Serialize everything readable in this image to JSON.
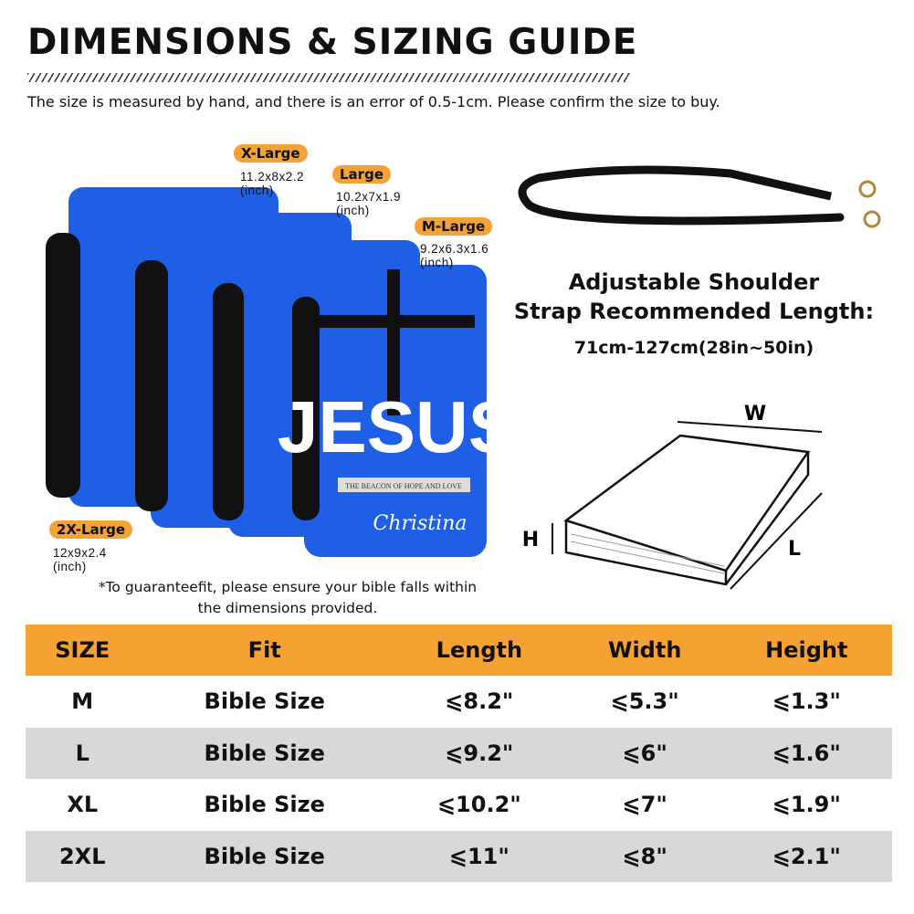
{
  "header": {
    "title": "DIMENSIONS & SIZING GUIDE",
    "subtitle": "The size is measured by hand, and there is an error of 0.5-1cm. Please confirm the size to buy."
  },
  "sizes": [
    {
      "label": "X-Large",
      "dims": "11.2x8x2.2",
      "unit": "(inch)"
    },
    {
      "label": "Large",
      "dims": "10.2x7x1.9",
      "unit": "(inch)"
    },
    {
      "label": "M-Large",
      "dims": "9.2x6.3x1.6",
      "unit": "(inch)"
    },
    {
      "label": "2X-Large",
      "dims": "12x9x2.4",
      "unit": "(inch)"
    }
  ],
  "product": {
    "cover_text": "JESUS",
    "tagline": "THE BEACON OF HOPE AND LOVE",
    "name": "Christina",
    "color": "#1f5fe6"
  },
  "note": "*To guaranteefit, please ensure your bible falls within the dimensions provided.",
  "strap": {
    "title_line1": "Adjustable Shoulder",
    "title_line2": "Strap Recommended Length:",
    "length": "71cm-127cm(28in~50in)"
  },
  "diagram": {
    "w": "W",
    "h": "H",
    "l": "L"
  },
  "table": {
    "headers": [
      "SIZE",
      "Fit",
      "Length",
      "Width",
      "Height"
    ],
    "rows": [
      [
        "M",
        "Bible Size",
        "⩽8.2\"",
        "⩽5.3\"",
        "⩽1.3\""
      ],
      [
        "L",
        "Bible Size",
        "⩽9.2\"",
        "⩽6\"",
        "⩽1.6\""
      ],
      [
        "XL",
        "Bible Size",
        "⩽10.2\"",
        "⩽7\"",
        "⩽1.9\""
      ],
      [
        "2XL",
        "Bible Size",
        "⩽11\"",
        "⩽8\"",
        "⩽2.1\""
      ]
    ]
  },
  "colors": {
    "accent": "#f4a237",
    "row_alt": "#d8d8d8"
  }
}
